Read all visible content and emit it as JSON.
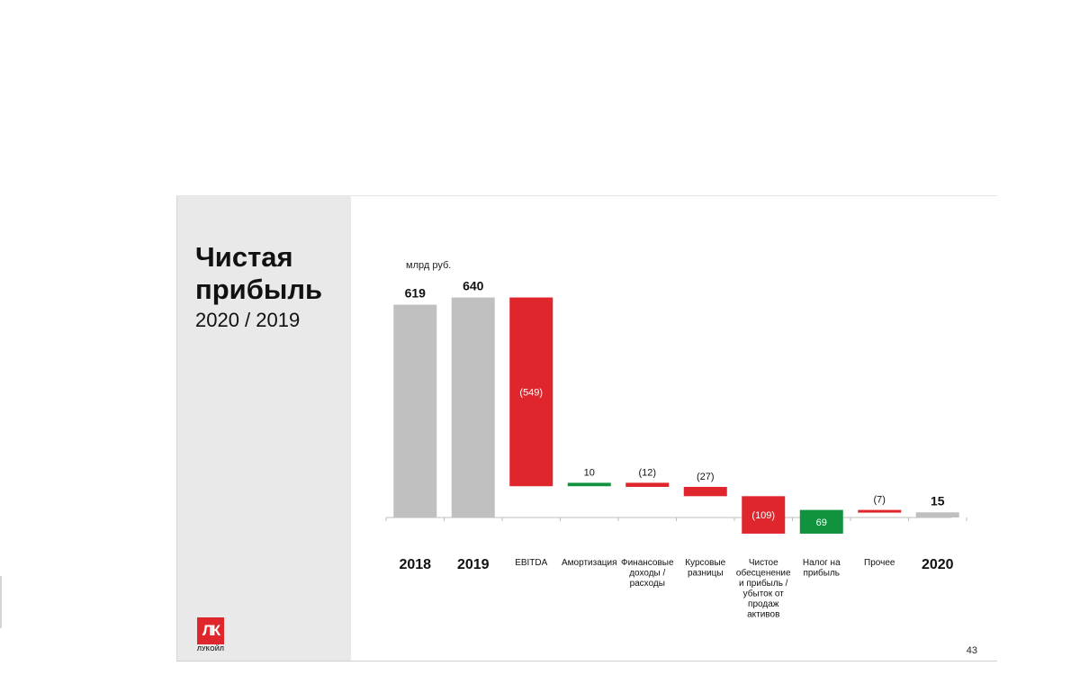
{
  "slide": {
    "title": "Чистая прибыль",
    "subtitle": "2020 / 2019",
    "logo_text": "ЛУКОЙЛ",
    "logo_mark": "ЛК",
    "page_number": "43"
  },
  "colors": {
    "total": "#c0c0c0",
    "negative": "#e0262d",
    "positive": "#11923e",
    "panel": "#e9e9e9"
  },
  "chart_data": {
    "type": "bar",
    "subtype": "waterfall",
    "unit_label": "млрд руб.",
    "categories": [
      [
        "2018"
      ],
      [
        "2019"
      ],
      [
        "EBITDA"
      ],
      [
        "Амортизация"
      ],
      [
        "Финансовые",
        "доходы /",
        "расходы"
      ],
      [
        "Курсовые",
        "разницы"
      ],
      [
        "Чистое",
        "обесценение",
        "и прибыль /",
        "убыток от",
        "продаж",
        "активов"
      ],
      [
        "Налог на",
        "прибыль"
      ],
      [
        "Прочее"
      ],
      [
        "2020"
      ]
    ],
    "values": [
      619,
      640,
      -549,
      10,
      -12,
      -27,
      -109,
      69,
      -7,
      15
    ],
    "kinds": [
      "total",
      "total",
      "delta",
      "delta",
      "delta",
      "delta",
      "delta",
      "delta",
      "delta",
      "total"
    ],
    "data_labels": [
      "619",
      "640",
      "(549)",
      "10",
      "(12)",
      "(27)",
      "(109)",
      "69",
      "(7)",
      "15"
    ],
    "grid": false,
    "legend": "none"
  }
}
